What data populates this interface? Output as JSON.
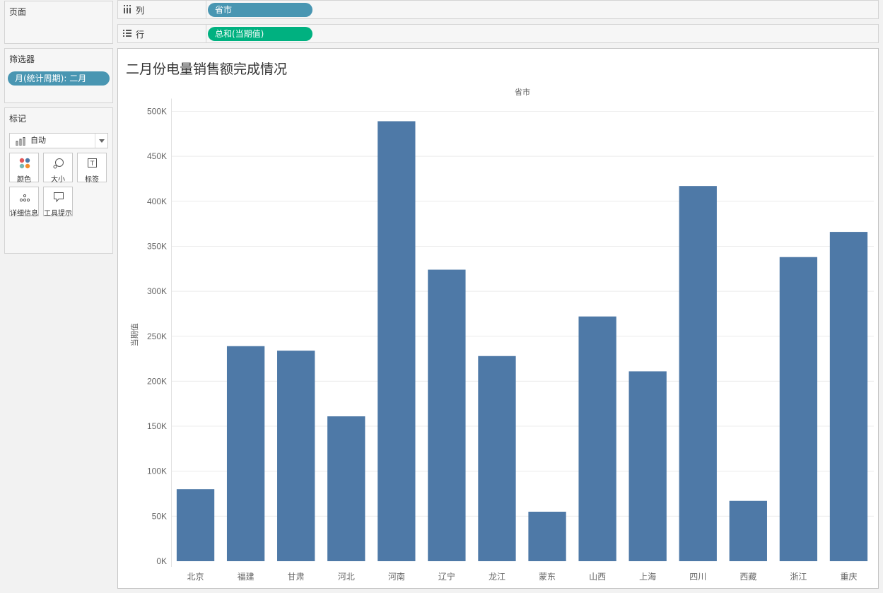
{
  "pages_panel": {
    "title": "页面"
  },
  "filters_panel": {
    "title": "筛选器",
    "filter_pill": "月(统计周期): 二月"
  },
  "marks_panel": {
    "title": "标记",
    "mark_type": "自动",
    "buttons": [
      {
        "label": "颜色",
        "icon": "color-icon"
      },
      {
        "label": "大小",
        "icon": "size-icon"
      },
      {
        "label": "标签",
        "icon": "label-icon"
      },
      {
        "label": "详细信息",
        "icon": "detail-icon"
      },
      {
        "label": "工具提示",
        "icon": "tooltip-icon"
      }
    ]
  },
  "columns_shelf": {
    "label": "列",
    "pill": "省市"
  },
  "rows_shelf": {
    "label": "行",
    "pill": "总和(当期值)"
  },
  "colors": {
    "bar": "#4e79a7",
    "pill_blue": "#4996b2",
    "pill_green": "#00b180"
  },
  "view": {
    "title": "二月份电量销售额完成情况"
  },
  "chart_data": {
    "type": "bar",
    "title": "二月份电量销售额完成情况",
    "xlabel": "省市",
    "ylabel": "当期值",
    "categories": [
      "北京",
      "福建",
      "甘肃",
      "河北",
      "河南",
      "辽宁",
      "龙江",
      "蒙东",
      "山西",
      "上海",
      "四川",
      "西藏",
      "浙江",
      "重庆"
    ],
    "values": [
      80000,
      239000,
      234000,
      161000,
      489000,
      324000,
      228000,
      55000,
      272000,
      211000,
      417000,
      67000,
      338000,
      366000
    ],
    "yticks": [
      "0K",
      "50K",
      "100K",
      "150K",
      "200K",
      "250K",
      "300K",
      "350K",
      "400K",
      "450K",
      "500K"
    ],
    "ylim": [
      0,
      500000
    ],
    "grid": true
  }
}
